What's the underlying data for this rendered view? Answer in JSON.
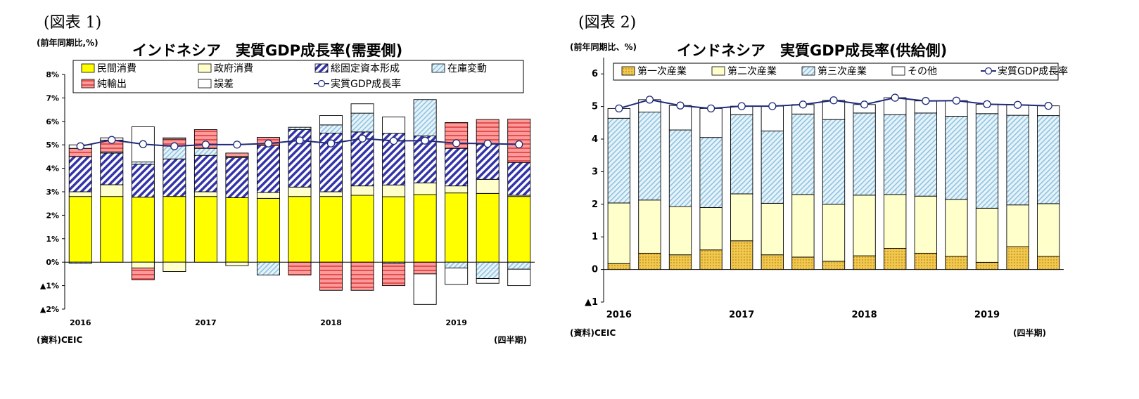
{
  "chart_data": [
    {
      "type": "bar",
      "subtype": "stacked+line",
      "figure_label": "(図表 1)",
      "title": "インドネシア　実質GDP成長率(需要側)",
      "ylabel": "(前年同期比,%)",
      "xlabel": "(四半期)",
      "source": "(資料)CEIC",
      "ylim": [
        -2,
        8
      ],
      "y_ticks": [
        8,
        7,
        6,
        5,
        4,
        3,
        2,
        1,
        0,
        -1,
        -2
      ],
      "y_tick_labels": [
        "8%",
        "7%",
        "6%",
        "5%",
        "4%",
        "3%",
        "2%",
        "1%",
        "0%",
        "▲1%",
        "▲2%"
      ],
      "year_labels": [
        {
          "label": "2016",
          "index": 0
        },
        {
          "label": "2017",
          "index": 4
        },
        {
          "label": "2018",
          "index": 8
        },
        {
          "label": "2019",
          "index": 12
        }
      ],
      "series": [
        {
          "name": "民間消費",
          "color": "#ffff00",
          "pattern": "solid",
          "values": [
            2.8,
            2.8,
            2.77,
            2.8,
            2.8,
            2.75,
            2.72,
            2.8,
            2.8,
            2.85,
            2.79,
            2.88,
            2.95,
            2.93,
            2.8
          ]
        },
        {
          "name": "政府消費",
          "color": "#ffffcc",
          "pattern": "solid",
          "values": [
            0.2,
            0.5,
            -0.25,
            -0.4,
            0.2,
            -0.15,
            0.25,
            0.4,
            0.2,
            0.4,
            0.5,
            0.5,
            0.3,
            0.6,
            0.05
          ]
        },
        {
          "name": "総固定資本形成",
          "color": "#3333aa",
          "pattern": "hatch",
          "values": [
            1.5,
            1.35,
            1.4,
            1.6,
            1.55,
            1.7,
            2.0,
            2.45,
            2.5,
            2.3,
            2.2,
            2.0,
            1.6,
            1.5,
            1.4
          ]
        },
        {
          "name": "在庫変動",
          "color": "#b8dcf0",
          "pattern": "hatch",
          "values": [
            -0.05,
            0.05,
            0.1,
            0.55,
            0.3,
            0.05,
            -0.55,
            0.1,
            0.35,
            0.8,
            -0.05,
            1.55,
            -0.25,
            -0.7,
            -0.3
          ]
        },
        {
          "name": "純輸出",
          "color": "#ff8080",
          "pattern": "hatch",
          "values": [
            0.35,
            0.5,
            -0.5,
            0.3,
            0.8,
            0.15,
            0.35,
            -0.55,
            -1.2,
            -1.2,
            -0.95,
            -0.5,
            1.1,
            1.05,
            1.85
          ]
        },
        {
          "name": "誤差",
          "color": "#ffffff",
          "pattern": "solid",
          "values": [
            0.15,
            0.1,
            1.5,
            0.05,
            0.0,
            0.0,
            0.0,
            0.0,
            0.4,
            0.4,
            0.7,
            -1.3,
            -0.7,
            -0.2,
            -0.7
          ]
        }
      ],
      "line": {
        "name": "実質GDP成長率",
        "color": "#1f2b7a",
        "values": [
          4.94,
          5.21,
          5.03,
          4.94,
          5.01,
          5.01,
          5.06,
          5.19,
          5.06,
          5.27,
          5.17,
          5.18,
          5.07,
          5.05,
          5.02
        ]
      },
      "legend_order": [
        "民間消費",
        "政府消費",
        "総固定資本形成",
        "在庫変動",
        "純輸出",
        "誤差",
        "実質GDP成長率"
      ]
    },
    {
      "type": "bar",
      "subtype": "stacked+line",
      "figure_label": "(図表 2)",
      "title": "インドネシア　実質GDP成長率(供給側)",
      "ylabel": "(前年同期比、%)",
      "xlabel": "(四半期)",
      "source": "(資料)CEIC",
      "ylim": [
        -1,
        6.5
      ],
      "y_ticks": [
        6,
        5,
        4,
        3,
        2,
        1,
        0,
        -1
      ],
      "y_tick_labels": [
        "6",
        "5",
        "4",
        "3",
        "2",
        "1",
        "0",
        "▲1"
      ],
      "year_labels": [
        {
          "label": "2016",
          "index": 0
        },
        {
          "label": "2017",
          "index": 4
        },
        {
          "label": "2018",
          "index": 8
        },
        {
          "label": "2019",
          "index": 12
        }
      ],
      "series": [
        {
          "name": "第一次産業",
          "color": "#e8b830",
          "pattern": "dots",
          "values": [
            0.18,
            0.5,
            0.45,
            0.6,
            0.88,
            0.45,
            0.38,
            0.25,
            0.42,
            0.65,
            0.5,
            0.4,
            0.22,
            0.7,
            0.4
          ]
        },
        {
          "name": "第二次産業",
          "color": "#ffffcc",
          "pattern": "solid",
          "values": [
            1.86,
            1.63,
            1.48,
            1.3,
            1.44,
            1.58,
            1.92,
            1.75,
            1.86,
            1.65,
            1.75,
            1.75,
            1.66,
            1.28,
            1.62
          ]
        },
        {
          "name": "第三次産業",
          "color": "#b8dcf0",
          "pattern": "hatch",
          "values": [
            2.6,
            2.7,
            2.35,
            2.15,
            2.43,
            2.22,
            2.47,
            2.6,
            2.52,
            2.45,
            2.55,
            2.55,
            2.9,
            2.75,
            2.7
          ]
        },
        {
          "name": "その他",
          "color": "#ffffff",
          "pattern": "solid",
          "values": [
            0.3,
            0.38,
            0.75,
            0.89,
            0.26,
            0.76,
            0.29,
            0.59,
            0.26,
            0.52,
            0.37,
            0.48,
            0.29,
            0.32,
            0.3
          ]
        }
      ],
      "line": {
        "name": "実質GDP成長率",
        "color": "#1f2b7a",
        "values": [
          4.94,
          5.21,
          5.03,
          4.94,
          5.01,
          5.01,
          5.06,
          5.19,
          5.06,
          5.27,
          5.17,
          5.18,
          5.07,
          5.05,
          5.02
        ]
      },
      "legend_order": [
        "第一次産業",
        "第二次産業",
        "第三次産業",
        "その他",
        "実質GDP成長率"
      ]
    }
  ]
}
